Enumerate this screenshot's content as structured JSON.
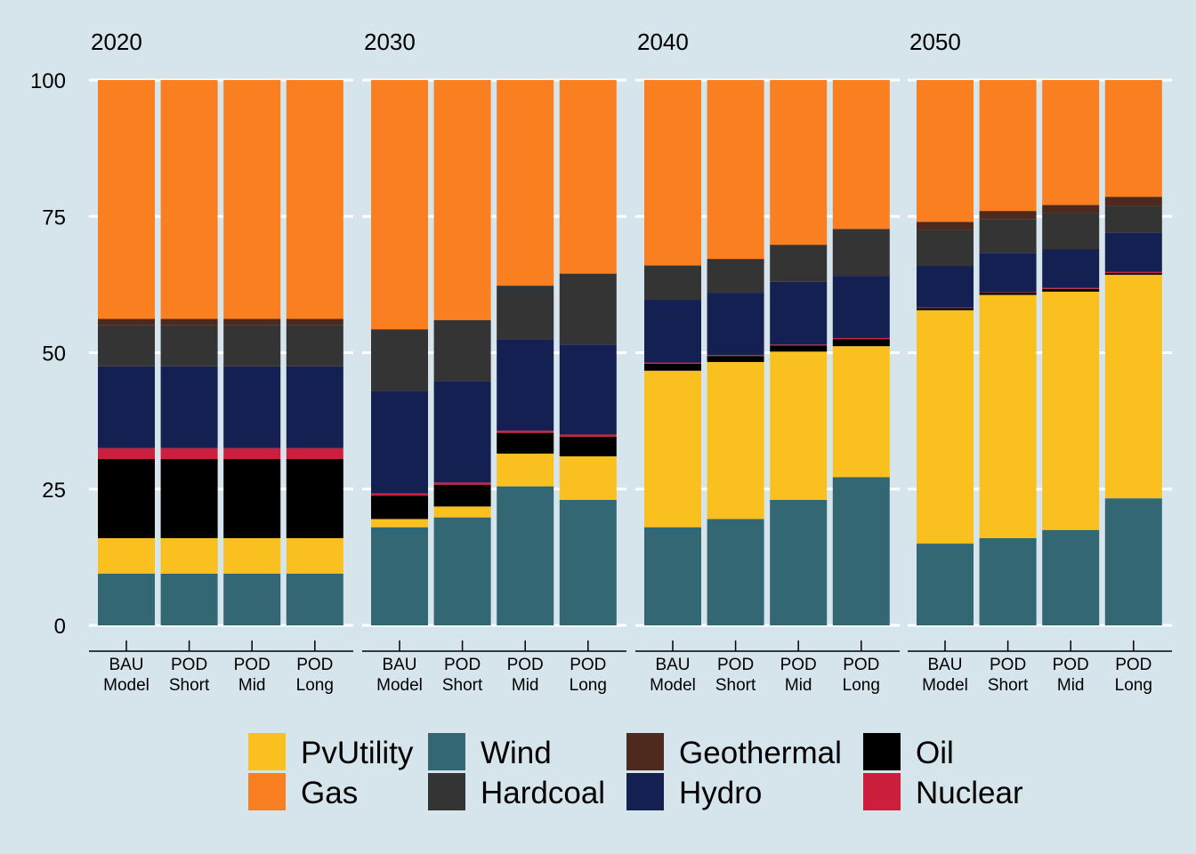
{
  "colors": {
    "background": "#d6e4eb",
    "grid": "#ffffff",
    "PvUtility": "#f9c020",
    "Wind": "#336774",
    "Geothermal": "#4e2a1e",
    "Oil": "#000000",
    "Gas": "#fa7f20",
    "Hardcoal": "#343434",
    "Hydro": "#141f52",
    "Nuclear": "#cc1f3e"
  },
  "chart_data": {
    "type": "bar",
    "stacked": true,
    "facet_by": "year",
    "ylim": [
      0,
      100
    ],
    "yticks": [
      "0",
      "25",
      "50",
      "75",
      "100"
    ],
    "grid": true,
    "legend_position": "bottom",
    "stack_order": [
      "Wind",
      "PvUtility",
      "Oil",
      "Nuclear",
      "Hydro",
      "Hardcoal",
      "Geothermal",
      "Gas"
    ],
    "legend": {
      "row1": [
        "PvUtility",
        "Wind",
        "Geothermal",
        "Oil"
      ],
      "row2": [
        "Gas",
        "Hardcoal",
        "Hydro",
        "Nuclear"
      ]
    },
    "scenarios": [
      {
        "line1": "BAU",
        "line2": "Model"
      },
      {
        "line1": "POD",
        "line2": "Short"
      },
      {
        "line1": "POD",
        "line2": "Mid"
      },
      {
        "line1": "POD",
        "line2": "Long"
      }
    ],
    "panels": [
      {
        "title": "2020",
        "bars": [
          {
            "Wind": 9.5,
            "PvUtility": 6.5,
            "Oil": 14.5,
            "Nuclear": 2.0,
            "Hydro": 15.0,
            "Hardcoal": 7.5,
            "Geothermal": 1.2,
            "Gas": 43.8
          },
          {
            "Wind": 9.5,
            "PvUtility": 6.5,
            "Oil": 14.5,
            "Nuclear": 2.0,
            "Hydro": 15.0,
            "Hardcoal": 7.5,
            "Geothermal": 1.2,
            "Gas": 43.8
          },
          {
            "Wind": 9.5,
            "PvUtility": 6.5,
            "Oil": 14.5,
            "Nuclear": 2.0,
            "Hydro": 15.0,
            "Hardcoal": 7.5,
            "Geothermal": 1.2,
            "Gas": 43.8
          },
          {
            "Wind": 9.5,
            "PvUtility": 6.5,
            "Oil": 14.5,
            "Nuclear": 2.0,
            "Hydro": 15.0,
            "Hardcoal": 7.5,
            "Geothermal": 1.2,
            "Gas": 43.8
          }
        ]
      },
      {
        "title": "2030",
        "bars": [
          {
            "Wind": 18.0,
            "PvUtility": 1.5,
            "Oil": 4.3,
            "Nuclear": 0.4,
            "Hydro": 18.8,
            "Hardcoal": 11.3,
            "Geothermal": 0,
            "Gas": 45.7
          },
          {
            "Wind": 19.8,
            "PvUtility": 2.0,
            "Oil": 4.0,
            "Nuclear": 0.4,
            "Hydro": 18.6,
            "Hardcoal": 11.2,
            "Geothermal": 0,
            "Gas": 44.0
          },
          {
            "Wind": 25.5,
            "PvUtility": 6.0,
            "Oil": 3.8,
            "Nuclear": 0.4,
            "Hydro": 16.8,
            "Hardcoal": 9.8,
            "Geothermal": 0,
            "Gas": 37.7
          },
          {
            "Wind": 23.0,
            "PvUtility": 8.0,
            "Oil": 3.6,
            "Nuclear": 0.4,
            "Hydro": 16.5,
            "Hardcoal": 13.0,
            "Geothermal": 0,
            "Gas": 35.5
          }
        ]
      },
      {
        "title": "2040",
        "bars": [
          {
            "Wind": 18.0,
            "PvUtility": 28.7,
            "Oil": 1.3,
            "Nuclear": 0.2,
            "Hydro": 11.5,
            "Hardcoal": 6.3,
            "Geothermal": 0,
            "Gas": 34.0
          },
          {
            "Wind": 19.5,
            "PvUtility": 28.8,
            "Oil": 1.1,
            "Nuclear": 0.2,
            "Hydro": 11.4,
            "Hardcoal": 6.2,
            "Geothermal": 0,
            "Gas": 32.8
          },
          {
            "Wind": 23.0,
            "PvUtility": 27.2,
            "Oil": 1.1,
            "Nuclear": 0.2,
            "Hydro": 11.5,
            "Hardcoal": 6.8,
            "Geothermal": 0,
            "Gas": 30.2
          },
          {
            "Wind": 27.2,
            "PvUtility": 24.0,
            "Oil": 1.3,
            "Nuclear": 0.2,
            "Hydro": 11.4,
            "Hardcoal": 8.6,
            "Geothermal": 0,
            "Gas": 27.3
          }
        ]
      },
      {
        "title": "2050",
        "bars": [
          {
            "Wind": 15.0,
            "PvUtility": 42.8,
            "Oil": 0.4,
            "Nuclear": 0.1,
            "Hydro": 7.6,
            "Hardcoal": 6.6,
            "Geothermal": 1.5,
            "Gas": 26.0
          },
          {
            "Wind": 16.0,
            "PvUtility": 44.6,
            "Oil": 0.4,
            "Nuclear": 0.1,
            "Hydro": 7.2,
            "Hardcoal": 6.2,
            "Geothermal": 1.5,
            "Gas": 24.0
          },
          {
            "Wind": 17.5,
            "PvUtility": 43.7,
            "Oil": 0.5,
            "Nuclear": 0.2,
            "Hydro": 7.1,
            "Hardcoal": 6.6,
            "Geothermal": 1.5,
            "Gas": 22.9
          },
          {
            "Wind": 23.3,
            "PvUtility": 41.0,
            "Oil": 0.3,
            "Nuclear": 0.2,
            "Hydro": 7.2,
            "Hardcoal": 4.9,
            "Geothermal": 1.7,
            "Gas": 21.4
          }
        ]
      }
    ]
  }
}
